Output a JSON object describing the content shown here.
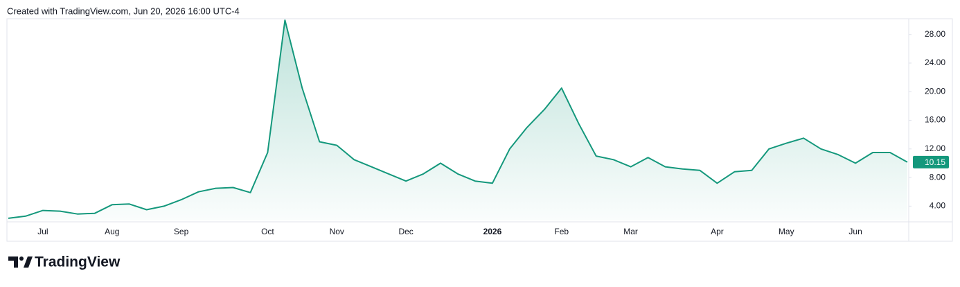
{
  "chart_data": {
    "type": "line",
    "title": "Created with TradingView.com, Jun 20, 2026 16:00 UTC-4",
    "brand": "TradingView",
    "categories": [
      null,
      null,
      "Jul",
      null,
      null,
      null,
      "Aug",
      null,
      null,
      null,
      "Sep",
      null,
      null,
      null,
      null,
      "Oct",
      null,
      null,
      null,
      "Nov",
      null,
      null,
      null,
      "Dec",
      null,
      null,
      null,
      null,
      "2026",
      null,
      null,
      null,
      "Feb",
      null,
      null,
      null,
      "Mar",
      null,
      null,
      null,
      null,
      "Apr",
      null,
      null,
      null,
      "May",
      null,
      null,
      null,
      "Jun",
      null,
      null,
      null
    ],
    "values": [
      2.3,
      2.6,
      3.4,
      3.3,
      2.9,
      3.0,
      4.2,
      4.3,
      3.5,
      4.0,
      4.9,
      6.0,
      6.5,
      6.6,
      5.9,
      11.5,
      30.0,
      20.5,
      13.0,
      12.5,
      10.5,
      9.5,
      8.5,
      7.5,
      8.5,
      10.0,
      8.5,
      7.5,
      7.2,
      12.0,
      15.0,
      17.5,
      20.5,
      15.5,
      11.0,
      10.5,
      9.5,
      10.8,
      9.5,
      9.2,
      9.0,
      7.2,
      8.8,
      9.0,
      12.0,
      12.8,
      13.5,
      12.0,
      11.2,
      10.0,
      11.5,
      11.5,
      10.15
    ],
    "color": "#14987c",
    "ylim": [
      2,
      30.2
    ],
    "yticks": [
      {
        "value": 4,
        "label": "4.00"
      },
      {
        "value": 8,
        "label": "8.00"
      },
      {
        "value": 12,
        "label": "12.00"
      },
      {
        "value": 16,
        "label": "16.00"
      },
      {
        "value": 20,
        "label": "20.00"
      },
      {
        "value": 24,
        "label": "24.00"
      },
      {
        "value": 28,
        "label": "28.00"
      }
    ],
    "grid": false
  }
}
